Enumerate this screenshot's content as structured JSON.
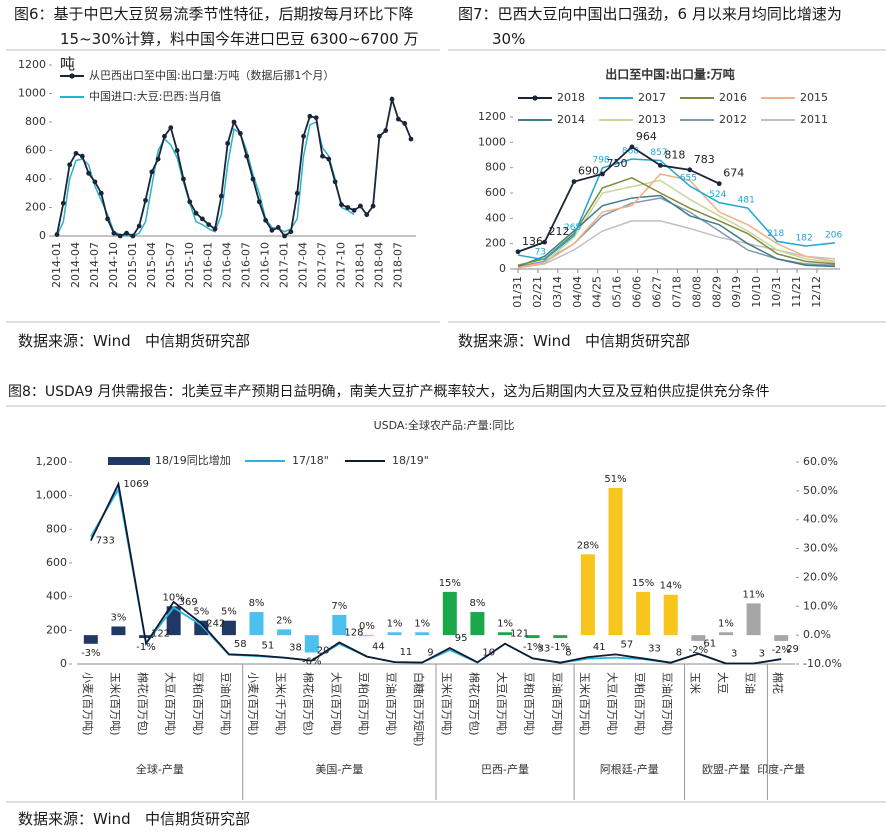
{
  "chart_data": [
    {
      "type": "line",
      "caption": "图6：基于中巴大豆贸易流季节性特征，后期按每月环比下降15~30%计算，料中国今年进口巴豆 6300~6700 万吨",
      "source": "数据来源：Wind   中信期货研究部",
      "categories": [
        "2014-01",
        null,
        null,
        "2014-04",
        null,
        null,
        "2014-07",
        null,
        null,
        "2014-10",
        null,
        null,
        "2015-01",
        null,
        null,
        "2015-04",
        null,
        null,
        "2015-07",
        null,
        null,
        "2015-10",
        null,
        null,
        "2016-01",
        null,
        null,
        "2016-04",
        null,
        null,
        "2016-07",
        null,
        null,
        "2016-10",
        null,
        null,
        "2017-01",
        null,
        null,
        "2017-04",
        null,
        null,
        "2017-07",
        null,
        null,
        "2017-10",
        null,
        null,
        "2018-01",
        null,
        null,
        "2018-04",
        null,
        null,
        "2018-07",
        null,
        null
      ],
      "series": [
        {
          "name": "从巴西出口至中国:出口量:万吨（数据后挪1个月）",
          "color": "#1b2438",
          "markers": true,
          "values": [
            10,
            230,
            500,
            580,
            560,
            440,
            380,
            300,
            120,
            20,
            0,
            20,
            0,
            70,
            250,
            450,
            540,
            700,
            760,
            600,
            400,
            240,
            160,
            120,
            80,
            50,
            280,
            650,
            800,
            720,
            560,
            400,
            240,
            110,
            40,
            60,
            0,
            30,
            300,
            700,
            840,
            830,
            560,
            540,
            380,
            220,
            200,
            180,
            210,
            150,
            210,
            700,
            740,
            960,
            820,
            790,
            680
          ]
        },
        {
          "name": "中国进口:大豆:巴西:当月值",
          "color": "#2ab3c8",
          "markers": false,
          "values": [
            0,
            100,
            400,
            530,
            540,
            500,
            350,
            250,
            150,
            30,
            10,
            0,
            0,
            20,
            100,
            350,
            600,
            680,
            640,
            550,
            380,
            230,
            100,
            80,
            50,
            30,
            150,
            500,
            750,
            720,
            600,
            430,
            300,
            120,
            60,
            50,
            30,
            50,
            120,
            560,
            780,
            800,
            620,
            560,
            400,
            200,
            180,
            150,
            null,
            null,
            null,
            null,
            null,
            null,
            null,
            null,
            null
          ]
        }
      ],
      "ylim": [
        0,
        1200
      ],
      "yticks": [
        0,
        200,
        400,
        600,
        800,
        1000,
        1200
      ]
    },
    {
      "type": "line",
      "caption": "图7：巴西大豆向中国出口强劲，6 月以来月均同比增速为 30%",
      "source": "数据来源：Wind   中信期货研究部",
      "title": "出口至中国:出口量:万吨",
      "x": [
        31,
        59,
        90,
        120,
        151,
        181,
        212,
        243,
        273,
        304,
        334,
        365
      ],
      "xlim": [
        31,
        365
      ],
      "xticks": [
        {
          "value": 31,
          "label": "01/31"
        },
        {
          "value": 52,
          "label": "02/21"
        },
        {
          "value": 73,
          "label": "03/14"
        },
        {
          "value": 94,
          "label": "04/04"
        },
        {
          "value": 115,
          "label": "04/25"
        },
        {
          "value": 136,
          "label": "05/16"
        },
        {
          "value": 157,
          "label": "06/06"
        },
        {
          "value": 178,
          "label": "06/27"
        },
        {
          "value": 199,
          "label": "07/18"
        },
        {
          "value": 220,
          "label": "08/08"
        },
        {
          "value": 241,
          "label": "08/29"
        },
        {
          "value": 262,
          "label": "09/19"
        },
        {
          "value": 283,
          "label": "10/10"
        },
        {
          "value": 304,
          "label": "10/31"
        },
        {
          "value": 325,
          "label": "11/21"
        },
        {
          "value": 346,
          "label": "12/12"
        }
      ],
      "series": [
        {
          "name": "2018",
          "color": "#1b2438",
          "markers": true,
          "show_values": true,
          "values": [
            136,
            212,
            690,
            750,
            964,
            818,
            783,
            674,
            null,
            null,
            null,
            null
          ]
        },
        {
          "name": "2017",
          "color": "#1ea6d6",
          "values": [
            110,
            73,
            265,
            798,
            868,
            857,
            655,
            524,
            481,
            218,
            182,
            206
          ],
          "value_labels": [
            null,
            "73",
            "265",
            "798",
            "868",
            "857",
            "655",
            "524",
            "481",
            "218",
            "182",
            "206"
          ]
        },
        {
          "name": "2016",
          "color": "#7f8b3b",
          "values": [
            30,
            80,
            280,
            640,
            720,
            600,
            480,
            380,
            280,
            120,
            60,
            40
          ]
        },
        {
          "name": "2015",
          "color": "#f4b183",
          "values": [
            10,
            50,
            200,
            450,
            500,
            750,
            700,
            450,
            350,
            200,
            100,
            60
          ]
        },
        {
          "name": "2014",
          "color": "#3f7d88",
          "values": [
            20,
            100,
            300,
            500,
            560,
            580,
            420,
            350,
            200,
            80,
            30,
            20
          ]
        },
        {
          "name": "2013",
          "color": "#c5d89c",
          "values": [
            10,
            50,
            250,
            600,
            650,
            700,
            550,
            420,
            300,
            150,
            80,
            50
          ]
        },
        {
          "name": "2012",
          "color": "#8497b0",
          "values": [
            20,
            60,
            200,
            420,
            520,
            560,
            450,
            300,
            150,
            80,
            40,
            30
          ]
        },
        {
          "name": "2011",
          "color": "#c0c0c0",
          "values": [
            10,
            40,
            150,
            300,
            380,
            380,
            320,
            250,
            200,
            150,
            100,
            80
          ]
        }
      ],
      "ylim": [
        0,
        1200
      ],
      "yticks": [
        0,
        200,
        400,
        600,
        800,
        1000,
        1200
      ]
    },
    {
      "type": "combo",
      "caption": "图8：USDA9 月供需报告：北美豆丰产预期日益明确，南美大豆扩产概率较大，这为后期国内大豆及豆粕供应提供充分条件",
      "source": "数据来源：Wind   中信期货研究部",
      "title": "USDA:全球农产品:产量:同比",
      "groups": [
        {
          "name": "全球-产量",
          "color": "#1f3864",
          "categories": [
            "小麦(百万吨)",
            "玉米(百万吨)",
            "棉花(百万包)",
            "大豆(百万吨)",
            "豆粕(百万吨)",
            "豆油(百万吨)"
          ]
        },
        {
          "name": "美国-产量",
          "color": "#4cc1ef",
          "categories": [
            "小麦(百万吨)",
            "玉米(千万吨)",
            "棉花(百万包)",
            "大豆(百万吨)",
            "豆粕(百万吨)",
            "豆油(百万吨)",
            "白糖(百万短吨)"
          ]
        },
        {
          "name": "巴西-产量",
          "color": "#1aa84a",
          "categories": [
            "玉米(百万吨)",
            "棉花(百万包)",
            "大豆(百万吨)",
            "豆粕(百万吨)",
            "豆油(百万吨)"
          ]
        },
        {
          "name": "阿根廷-产量",
          "color": "#f7c51c",
          "categories": [
            "玉米(百万吨)",
            "大豆(百万吨)",
            "豆粕(百万吨)",
            "豆油(百万吨)"
          ]
        },
        {
          "name": "欧盟-产量",
          "color": "#a6a6a6",
          "categories": [
            "玉米",
            "大豆",
            "豆油"
          ]
        },
        {
          "name": "印度-产量",
          "color": "#a6a6a6",
          "categories": [
            "棉花"
          ]
        }
      ],
      "series": [
        {
          "name": "18/19同比增加",
          "type": "bar",
          "axis": "y2",
          "color": "#1f3864",
          "values": [
            -3,
            3,
            -1,
            10,
            5,
            5,
            8,
            2,
            -6,
            7,
            0,
            1,
            1,
            15,
            8,
            1,
            -1,
            -1,
            28,
            51,
            15,
            14,
            -2,
            1,
            11,
            -2
          ],
          "value_labels": [
            "-3%",
            "3%",
            "-1%",
            "10%",
            "5%",
            "5%",
            "8%",
            "2%",
            "-6%",
            "7%",
            "0%",
            "1%",
            "1%",
            "15%",
            "8%",
            "1%",
            "-1%",
            "-1%",
            "28%",
            "51%",
            "15%",
            "14%",
            "-2%",
            "1%",
            "11%",
            "-2%"
          ]
        },
        {
          "name": "17/18\"",
          "type": "line",
          "color": "#2ab3e0",
          "values": [
            757,
            1038,
            123,
            335,
            231,
            55,
            47,
            37,
            21,
            120,
            44,
            11,
            9,
            83,
            9,
            120,
            33,
            8,
            32,
            38,
            29,
            7,
            62,
            3,
            3,
            30
          ]
        },
        {
          "name": "18/19\"",
          "type": "line",
          "color": "#101a33",
          "show_values": true,
          "values": [
            733,
            1069,
            122,
            369,
            242,
            58,
            51,
            38,
            20,
            128,
            44,
            11,
            9,
            95,
            10,
            121,
            33,
            8,
            41,
            57,
            33,
            8,
            61,
            3,
            3,
            29
          ]
        }
      ],
      "ylim": [
        0,
        1200
      ],
      "yticks": [
        0,
        200,
        400,
        600,
        800,
        {
          "value": 1000,
          "label": "1,000"
        },
        {
          "value": 1200,
          "label": "1,200"
        }
      ],
      "y2lim": [
        -10,
        60
      ],
      "y2ticks": [
        {
          "value": -10,
          "label": "-10.0%"
        },
        {
          "value": 0,
          "label": "0.0%"
        },
        {
          "value": 10,
          "label": "10.0%"
        },
        {
          "value": 20,
          "label": "20.0%"
        },
        {
          "value": 30,
          "label": "30.0%"
        },
        {
          "value": 40,
          "label": "40.0%"
        },
        {
          "value": 50,
          "label": "50.0%"
        },
        {
          "value": 60,
          "label": "60.0%"
        }
      ]
    }
  ]
}
